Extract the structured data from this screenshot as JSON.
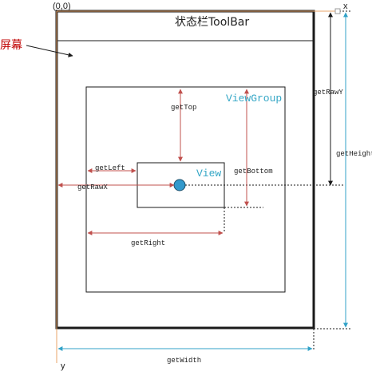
{
  "colors": {
    "outline": "#1a1a1a",
    "red_arrow": "#c0504d",
    "teal_arrow": "#31a2c8",
    "blue_text": "#35a7c6",
    "screen_label": "#c00000",
    "dot": "#3399cc"
  },
  "labels": {
    "origin": "(0,0)",
    "x_axis": "x",
    "y_axis": "y",
    "screen": "屏幕",
    "status_bar": "状态栏ToolBar",
    "viewgroup": "ViewGroup",
    "view": "View",
    "getTop": "getTop",
    "getLeft": "getLeft",
    "getRawX": "getRawX",
    "getBottom": "getBottom",
    "getRight": "getRight",
    "getRawY": "getRawY",
    "getHeight": "getHeight",
    "getWidth": "getWidth"
  }
}
